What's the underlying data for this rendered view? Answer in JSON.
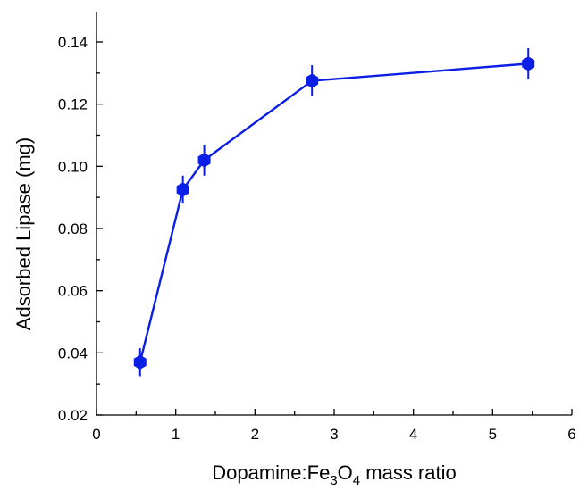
{
  "chart_data": {
    "type": "line",
    "xlabel": {
      "main": "Dopamine:Fe",
      "sub1": "3",
      "mid": "O",
      "sub2": "4",
      "tail": " mass ratio"
    },
    "ylabel": "Adsorbed Lipase (mg)",
    "xlim": [
      0,
      6
    ],
    "ylim": [
      0.02,
      0.145
    ],
    "xticks": [
      0,
      1,
      2,
      3,
      4,
      5,
      6
    ],
    "xtick_labels": [
      "0",
      "1",
      "2",
      "3",
      "4",
      "5",
      "6"
    ],
    "yticks": [
      0.02,
      0.04,
      0.06,
      0.08,
      0.1,
      0.12,
      0.14
    ],
    "ytick_labels": [
      "0.02",
      "0.04",
      "0.06",
      "0.08",
      "0.10",
      "0.12",
      "0.14"
    ],
    "grid": false,
    "series": [
      {
        "color": "#0a1ee6",
        "marker": "hexagon",
        "x": [
          0.55,
          1.09,
          1.36,
          2.72,
          5.45
        ],
        "y": [
          0.037,
          0.0925,
          0.102,
          0.1275,
          0.133
        ],
        "yerr": [
          0.0045,
          0.0045,
          0.005,
          0.005,
          0.005
        ]
      }
    ]
  }
}
